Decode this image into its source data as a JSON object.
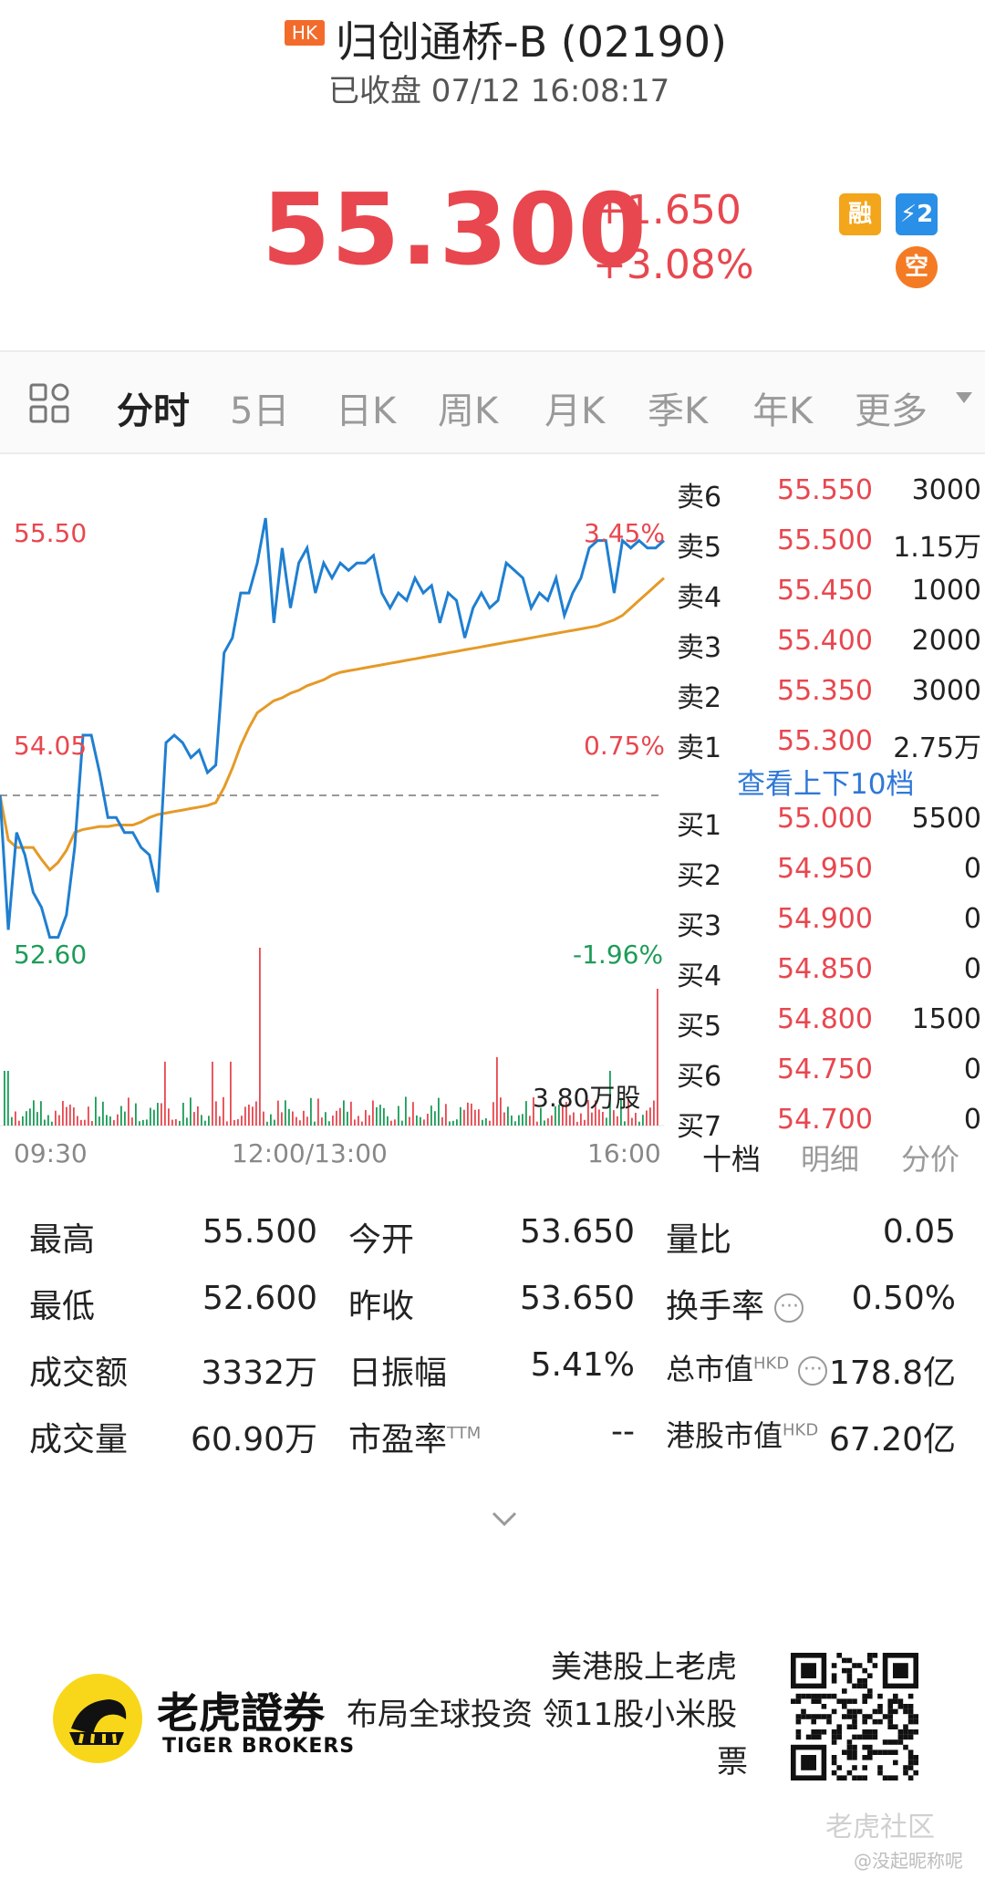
{
  "header": {
    "market_badge": "HK",
    "title": "归创通桥-B (02190)",
    "status": "已收盘 07/12 16:08:17"
  },
  "quote": {
    "price": "55.300",
    "change": "+1.650",
    "change_pct": "+3.08%",
    "badges": {
      "margin": "融",
      "level2": "⚡2",
      "short": "空"
    },
    "up_color": "#e8474f",
    "down_color": "#1c9c58"
  },
  "tabs": [
    "分时",
    "5日",
    "日K",
    "周K",
    "月K",
    "季K",
    "年K",
    "更多"
  ],
  "chart": {
    "y_labels": {
      "high": "55.50",
      "mid": "54.05",
      "low": "52.60",
      "pct_high": "3.45%",
      "pct_mid": "0.75%",
      "pct_low": "-1.96%"
    },
    "volume_label": "3.80万股",
    "time_labels": [
      "09:30",
      "12:00/13:00",
      "16:00"
    ],
    "line_color": "#1f7fd1",
    "avg_color": "#e59a27"
  },
  "chart_data": {
    "type": "line",
    "ylim": [
      52.6,
      55.5
    ],
    "reference": 53.65,
    "series": [
      {
        "values": [
          53.65,
          52.75,
          53.4,
          53.25,
          53.0,
          52.9,
          52.7,
          52.7,
          52.85,
          53.3,
          54.05,
          54.05,
          53.8,
          53.5,
          53.5,
          53.4,
          53.4,
          53.3,
          53.25,
          53.0,
          54.0,
          54.05,
          54.0,
          53.9,
          53.95,
          53.8,
          53.85,
          54.6,
          54.7,
          55.0,
          55.0,
          55.2,
          55.5,
          54.8,
          55.3,
          54.9,
          55.2,
          55.3,
          55.0,
          55.2,
          55.1,
          55.2,
          55.15,
          55.2,
          55.2,
          55.25,
          55.0,
          54.9,
          55.0,
          54.95,
          55.1,
          55.0,
          55.05,
          54.8,
          55.0,
          54.95,
          54.7,
          54.9,
          55.0,
          54.9,
          54.95,
          55.2,
          55.15,
          55.1,
          54.9,
          55.0,
          54.95,
          55.1,
          54.85,
          55.0,
          55.1,
          55.3,
          55.35,
          55.35,
          55.0,
          55.35,
          55.3,
          55.35,
          55.3,
          55.3,
          55.35
        ]
      },
      {
        "values": [
          53.65,
          53.35,
          53.3,
          53.3,
          53.3,
          53.22,
          53.15,
          53.2,
          53.28,
          53.4,
          53.42,
          53.43,
          53.44,
          53.44,
          53.45,
          53.45,
          53.45,
          53.47,
          53.5,
          53.52,
          53.53,
          53.54,
          53.55,
          53.56,
          53.57,
          53.58,
          53.6,
          53.7,
          53.83,
          53.98,
          54.1,
          54.2,
          54.24,
          54.28,
          54.3,
          54.33,
          54.35,
          54.38,
          54.4,
          54.42,
          54.45,
          54.47,
          54.48,
          54.49,
          54.5,
          54.51,
          54.52,
          54.53,
          54.54,
          54.55,
          54.56,
          54.57,
          54.58,
          54.59,
          54.6,
          54.61,
          54.62,
          54.63,
          54.64,
          54.65,
          54.66,
          54.67,
          54.68,
          54.69,
          54.7,
          54.71,
          54.72,
          54.73,
          54.74,
          54.75,
          54.76,
          54.77,
          54.78,
          54.8,
          54.82,
          54.85,
          54.9,
          54.95,
          55.0,
          55.05,
          55.1
        ]
      }
    ],
    "volume_max": 38000
  },
  "orderbook": {
    "asks": [
      {
        "side": "卖6",
        "price": "55.550",
        "vol": "3000"
      },
      {
        "side": "卖5",
        "price": "55.500",
        "vol": "1.15万"
      },
      {
        "side": "卖4",
        "price": "55.450",
        "vol": "1000"
      },
      {
        "side": "卖3",
        "price": "55.400",
        "vol": "2000"
      },
      {
        "side": "卖2",
        "price": "55.350",
        "vol": "3000"
      },
      {
        "side": "卖1",
        "price": "55.300",
        "vol": "2.75万"
      }
    ],
    "link": "查看上下10档",
    "bids": [
      {
        "side": "买1",
        "price": "55.000",
        "vol": "5500"
      },
      {
        "side": "买2",
        "price": "54.950",
        "vol": "0"
      },
      {
        "side": "买3",
        "price": "54.900",
        "vol": "0"
      },
      {
        "side": "买4",
        "price": "54.850",
        "vol": "0"
      },
      {
        "side": "买5",
        "price": "54.800",
        "vol": "1500"
      },
      {
        "side": "买6",
        "price": "54.750",
        "vol": "0"
      },
      {
        "side": "买7",
        "price": "54.700",
        "vol": "0"
      }
    ],
    "tabs": [
      "十档",
      "明细",
      "分价"
    ]
  },
  "stats": {
    "col1": [
      {
        "label": "最高",
        "value": "55.500"
      },
      {
        "label": "最低",
        "value": "52.600"
      },
      {
        "label": "成交额",
        "value": "3332万"
      },
      {
        "label": "成交量",
        "value": "60.90万"
      }
    ],
    "col2": [
      {
        "label": "今开",
        "value": "53.650"
      },
      {
        "label": "昨收",
        "value": "53.650"
      },
      {
        "label": "日振幅",
        "value": "5.41%"
      },
      {
        "label": "市盈率",
        "sup": "TTM",
        "value": "--"
      }
    ],
    "col3": [
      {
        "label": "量比",
        "value": "0.05"
      },
      {
        "label": "换手率",
        "value": "0.50%"
      },
      {
        "label": "总市值",
        "sup": "HKD",
        "value": "178.8亿"
      },
      {
        "label": "港股市值",
        "sup": "HKD",
        "value": "67.20亿"
      }
    ]
  },
  "footer": {
    "brand_cn": "老虎證券",
    "brand_en": "TIGER BROKERS",
    "promo_line1": "美港股上老虎",
    "promo_line2": "布局全球投资 领11股小米股",
    "promo_line3": "票",
    "watermark": "老虎社区",
    "watermark_user": "@没起昵称呢"
  }
}
